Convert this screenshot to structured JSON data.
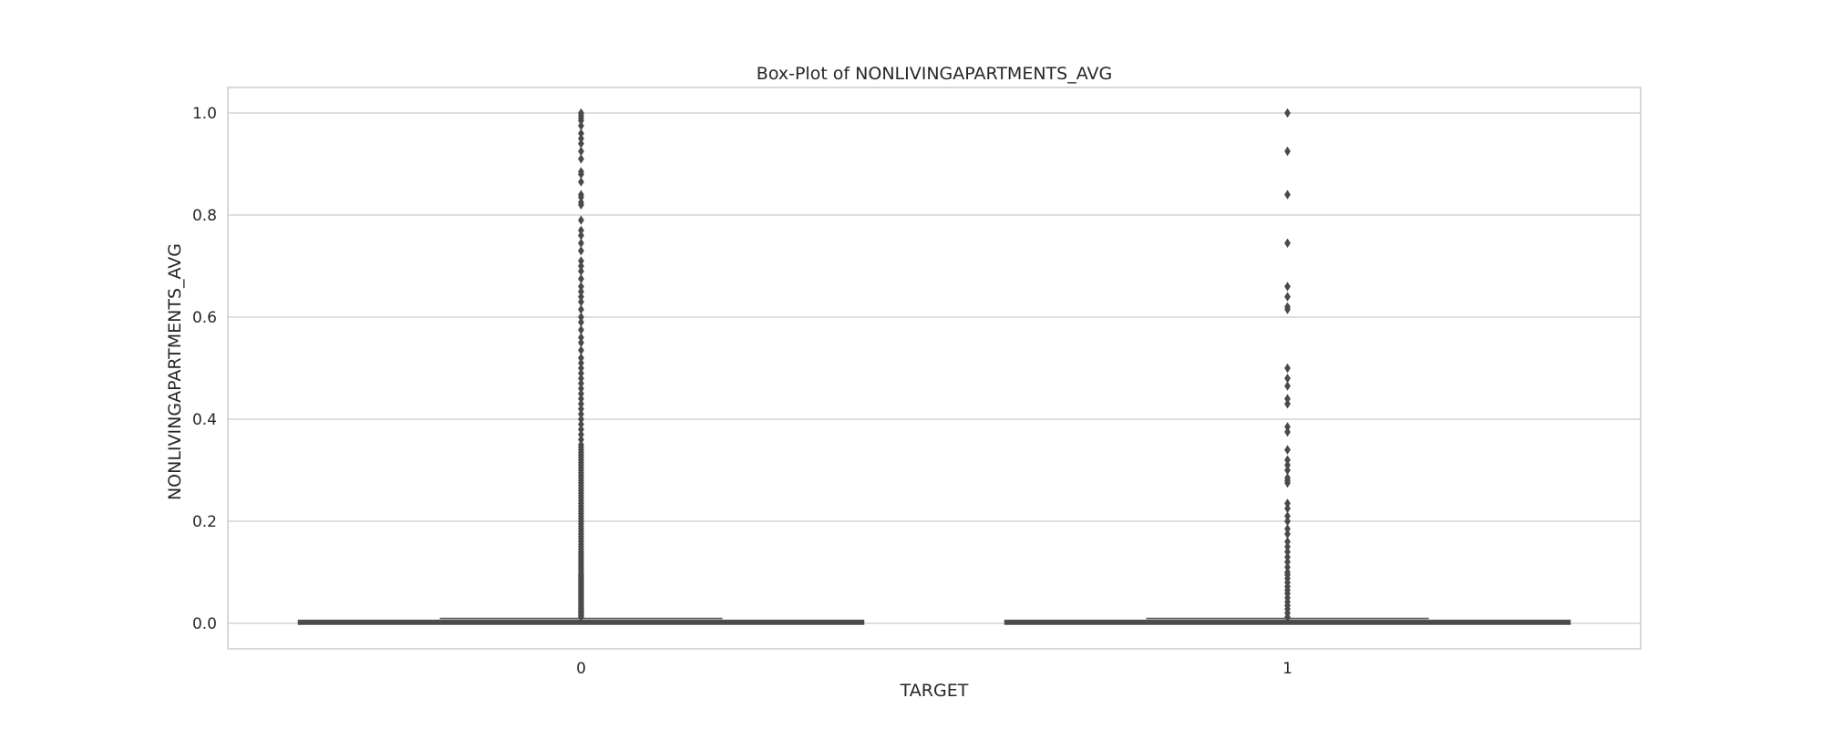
{
  "chart_data": {
    "type": "box",
    "title": "Box-Plot of NONLIVINGAPARTMENTS_AVG",
    "xlabel": "TARGET",
    "ylabel": "NONLIVINGAPARTMENTS_AVG",
    "categories": [
      "0",
      "1"
    ],
    "ylim": [
      -0.05,
      1.05
    ],
    "yticks": [
      "0.0",
      "0.2",
      "0.4",
      "0.6",
      "0.8",
      "1.0"
    ],
    "grid": true,
    "colors": {
      "box_edge": "#4a4a4a",
      "grid": "#cccccc",
      "frame": "#cccccc"
    },
    "boxes": [
      {
        "category": "0",
        "q1": 0.0,
        "median": 0.0039,
        "q3": 0.0039,
        "whisker_low": 0.0,
        "whisker_high": 0.0097
      },
      {
        "category": "1",
        "q1": 0.0,
        "median": 0.0039,
        "q3": 0.0039,
        "whisker_low": 0.0,
        "whisker_high": 0.0097
      }
    ],
    "outliers": [
      [
        0.012,
        0.015,
        0.018,
        0.02,
        0.022,
        0.025,
        0.028,
        0.03,
        0.033,
        0.036,
        0.039,
        0.042,
        0.045,
        0.048,
        0.051,
        0.054,
        0.057,
        0.06,
        0.063,
        0.066,
        0.069,
        0.072,
        0.075,
        0.078,
        0.081,
        0.084,
        0.087,
        0.09,
        0.093,
        0.096,
        0.1,
        0.104,
        0.108,
        0.112,
        0.116,
        0.12,
        0.124,
        0.128,
        0.132,
        0.136,
        0.14,
        0.145,
        0.15,
        0.155,
        0.16,
        0.165,
        0.17,
        0.175,
        0.18,
        0.185,
        0.19,
        0.195,
        0.2,
        0.205,
        0.21,
        0.215,
        0.22,
        0.225,
        0.23,
        0.235,
        0.24,
        0.245,
        0.25,
        0.255,
        0.26,
        0.265,
        0.27,
        0.275,
        0.28,
        0.285,
        0.29,
        0.295,
        0.3,
        0.305,
        0.31,
        0.315,
        0.32,
        0.325,
        0.33,
        0.335,
        0.34,
        0.345,
        0.35,
        0.36,
        0.37,
        0.38,
        0.39,
        0.4,
        0.41,
        0.42,
        0.43,
        0.44,
        0.45,
        0.46,
        0.47,
        0.48,
        0.49,
        0.5,
        0.51,
        0.52,
        0.535,
        0.55,
        0.56,
        0.575,
        0.59,
        0.6,
        0.615,
        0.63,
        0.64,
        0.65,
        0.66,
        0.675,
        0.69,
        0.7,
        0.71,
        0.73,
        0.745,
        0.76,
        0.77,
        0.79,
        0.82,
        0.825,
        0.835,
        0.84,
        0.865,
        0.88,
        0.885,
        0.91,
        0.925,
        0.94,
        0.95,
        0.96,
        0.975,
        0.985,
        0.99,
        0.995,
        1.0
      ],
      [
        0.012,
        0.02,
        0.028,
        0.035,
        0.042,
        0.05,
        0.058,
        0.065,
        0.072,
        0.08,
        0.088,
        0.095,
        0.1,
        0.11,
        0.12,
        0.13,
        0.14,
        0.15,
        0.16,
        0.175,
        0.185,
        0.2,
        0.21,
        0.225,
        0.235,
        0.275,
        0.28,
        0.285,
        0.3,
        0.31,
        0.32,
        0.34,
        0.375,
        0.385,
        0.43,
        0.44,
        0.465,
        0.48,
        0.5,
        0.615,
        0.62,
        0.64,
        0.66,
        0.745,
        0.84,
        0.925,
        1.0
      ]
    ]
  }
}
